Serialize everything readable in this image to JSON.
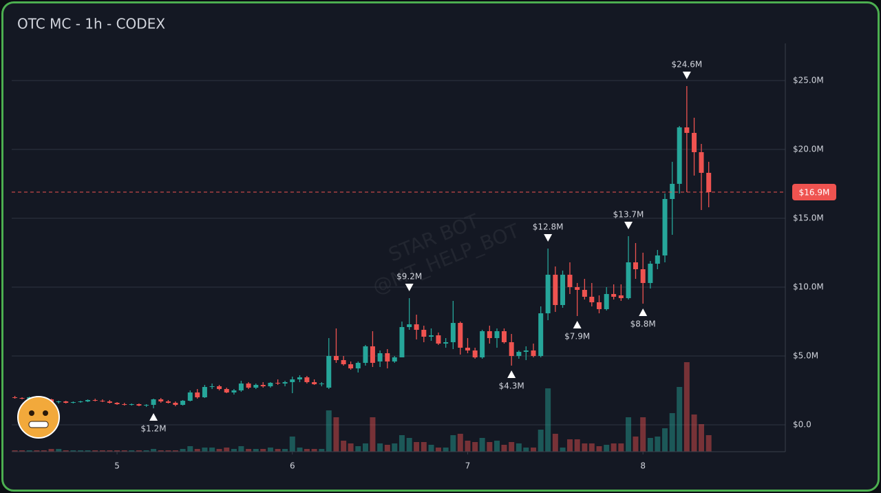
{
  "chart_data": {
    "type": "candlestick",
    "title": "OTC MC - 1h - CODEX",
    "watermark": [
      "STAR BOT",
      "@MT_HELP_BOT"
    ],
    "x": [
      4.417,
      4.458,
      4.5,
      4.542,
      4.583,
      4.625,
      4.667,
      4.708,
      4.75,
      4.792,
      4.833,
      4.875,
      4.917,
      4.958,
      5,
      5.042,
      5.083,
      5.125,
      5.167,
      5.208,
      5.25,
      5.292,
      5.333,
      5.375,
      5.417,
      5.458,
      5.5,
      5.542,
      5.583,
      5.625,
      5.667,
      5.708,
      5.75,
      5.792,
      5.833,
      5.875,
      5.917,
      5.958,
      6,
      6.042,
      6.083,
      6.125,
      6.167,
      6.208,
      6.25,
      6.292,
      6.333,
      6.375,
      6.417,
      6.458,
      6.5,
      6.542,
      6.583,
      6.625,
      6.667,
      6.708,
      6.75,
      6.792,
      6.833,
      6.875,
      6.917,
      6.958,
      7,
      7.042,
      7.083,
      7.125,
      7.167,
      7.208,
      7.25,
      7.292,
      7.333,
      7.375,
      7.417,
      7.458,
      7.5,
      7.542,
      7.583,
      7.625,
      7.667,
      7.708,
      7.75,
      7.792,
      7.833,
      7.875,
      7.917,
      7.958,
      8,
      8.042,
      8.083,
      8.125,
      8.167,
      8.208,
      8.25,
      8.292,
      8.333,
      8.375
    ],
    "open": [
      2.0,
      1.95,
      1.9,
      2.0,
      1.95,
      1.85,
      1.65,
      1.7,
      1.6,
      1.65,
      1.7,
      1.8,
      1.75,
      1.7,
      1.6,
      1.5,
      1.45,
      1.5,
      1.4,
      1.45,
      1.85,
      1.7,
      1.6,
      1.45,
      1.75,
      2.35,
      2.0,
      2.75,
      2.8,
      2.6,
      2.35,
      2.5,
      3.0,
      2.7,
      2.9,
      2.8,
      3.05,
      3.0,
      3.1,
      3.3,
      3.45,
      3.1,
      2.95,
      2.7,
      5.0,
      4.7,
      4.4,
      4.1,
      4.5,
      5.7,
      4.6,
      5.2,
      4.6,
      4.9,
      7.1,
      7.3,
      6.9,
      6.4,
      6.5,
      5.9,
      6.0,
      7.4,
      5.6,
      5.4,
      4.9,
      6.8,
      6.3,
      6.8,
      6.0,
      5.0,
      5.3,
      5.4,
      5.0,
      8.1,
      10.9,
      8.7,
      10.9,
      10.0,
      9.8,
      9.3,
      8.9,
      8.4,
      9.5,
      9.4,
      9.2,
      11.8,
      11.3,
      10.3,
      11.7,
      12.3,
      16.4,
      17.5,
      21.6,
      21.2,
      19.8,
      18.3
    ],
    "high": [
      2.1,
      2.0,
      2.05,
      2.1,
      2.05,
      1.9,
      1.75,
      1.75,
      1.7,
      1.75,
      1.85,
      1.9,
      1.85,
      1.8,
      1.65,
      1.6,
      1.55,
      1.55,
      1.5,
      1.9,
      1.95,
      1.8,
      1.7,
      1.8,
      2.5,
      2.6,
      2.9,
      3.0,
      2.9,
      2.7,
      2.6,
      3.2,
      3.1,
      3.0,
      3.1,
      3.1,
      3.3,
      3.2,
      3.5,
      3.6,
      3.55,
      3.3,
      3.1,
      6.3,
      7.0,
      5.0,
      4.6,
      4.6,
      5.8,
      6.8,
      5.4,
      5.5,
      5.0,
      7.5,
      9.2,
      8.0,
      7.2,
      7.0,
      6.7,
      6.3,
      9.0,
      7.5,
      6.3,
      5.6,
      6.9,
      7.2,
      7.0,
      7.0,
      6.6,
      5.4,
      5.7,
      5.9,
      8.6,
      12.8,
      11.5,
      11.2,
      11.8,
      10.3,
      10.6,
      10.3,
      9.4,
      10.0,
      10.2,
      10.2,
      13.7,
      13.2,
      12.5,
      11.9,
      12.7,
      16.8,
      19.1,
      21.7,
      24.6,
      22.3,
      20.4,
      19.1
    ],
    "low": [
      1.9,
      1.85,
      1.85,
      1.9,
      1.8,
      1.6,
      1.55,
      1.55,
      1.55,
      1.6,
      1.65,
      1.7,
      1.65,
      1.55,
      1.45,
      1.4,
      1.4,
      1.35,
      1.3,
      1.2,
      1.6,
      1.55,
      1.35,
      1.4,
      1.7,
      1.9,
      1.95,
      2.6,
      2.5,
      2.3,
      2.2,
      2.4,
      2.6,
      2.6,
      2.7,
      2.7,
      2.9,
      2.8,
      2.3,
      3.1,
      3.0,
      2.9,
      2.8,
      2.6,
      4.5,
      4.3,
      4.0,
      3.8,
      4.3,
      4.2,
      4.2,
      4.1,
      4.5,
      4.9,
      6.9,
      6.2,
      6.0,
      6.1,
      5.8,
      5.6,
      5.5,
      5.1,
      5.2,
      4.8,
      4.8,
      5.9,
      5.6,
      5.9,
      4.3,
      4.8,
      4.7,
      4.9,
      4.9,
      7.6,
      8.2,
      8.5,
      9.5,
      7.9,
      9.1,
      8.6,
      8.1,
      8.3,
      9.1,
      9.0,
      9.1,
      10.6,
      8.8,
      9.9,
      11.3,
      11.8,
      13.8,
      16.8,
      16.9,
      18.1,
      15.6,
      15.8
    ],
    "close": [
      1.95,
      1.9,
      2.0,
      1.95,
      1.85,
      1.65,
      1.7,
      1.6,
      1.65,
      1.7,
      1.8,
      1.75,
      1.7,
      1.6,
      1.5,
      1.45,
      1.5,
      1.4,
      1.45,
      1.85,
      1.7,
      1.6,
      1.45,
      1.75,
      2.35,
      2.0,
      2.75,
      2.8,
      2.6,
      2.35,
      2.5,
      3.0,
      2.7,
      2.9,
      2.8,
      3.05,
      3.0,
      3.1,
      3.3,
      3.45,
      3.1,
      2.95,
      3.0,
      5.0,
      4.7,
      4.4,
      4.1,
      4.5,
      5.7,
      4.5,
      5.2,
      4.6,
      4.9,
      7.1,
      7.3,
      6.9,
      6.4,
      6.5,
      5.9,
      6.0,
      7.4,
      5.6,
      5.4,
      4.9,
      6.8,
      6.3,
      6.8,
      6.0,
      5.0,
      5.3,
      5.4,
      5.0,
      8.1,
      10.9,
      8.7,
      10.9,
      10.0,
      9.8,
      9.3,
      8.9,
      8.4,
      9.5,
      9.3,
      9.2,
      11.8,
      11.3,
      10.3,
      11.7,
      12.3,
      16.4,
      17.5,
      21.6,
      21.2,
      19.8,
      18.3,
      16.9
    ],
    "volume": [
      1,
      1,
      1,
      1,
      1,
      2,
      2,
      1,
      1,
      1,
      1,
      1,
      1,
      1,
      1,
      1,
      1,
      1,
      1,
      2,
      1,
      1,
      1,
      2,
      4,
      2,
      3,
      3,
      2,
      3,
      2,
      4,
      2,
      2,
      2,
      3,
      2,
      2,
      11,
      3,
      2,
      2,
      2,
      30,
      25,
      8,
      6,
      4,
      6,
      25,
      6,
      5,
      6,
      12,
      10,
      7,
      7,
      5,
      3,
      3,
      12,
      13,
      8,
      7,
      10,
      7,
      8,
      5,
      7,
      6,
      3,
      3,
      16,
      46,
      13,
      3,
      9,
      9,
      6,
      6,
      4,
      5,
      6,
      6,
      25,
      11,
      25,
      10,
      11,
      17,
      28,
      47,
      65,
      27,
      20,
      12
    ],
    "up_color": "#26a69a",
    "down_color": "#ef5350",
    "xlim": [
      4.399,
      8.812
    ],
    "xticks": [
      5,
      6,
      7,
      8
    ],
    "ylim": [
      -1.95,
      27.7
    ],
    "yticks": [
      {
        "value": 0,
        "label": "$0.0"
      },
      {
        "value": 5,
        "label": "$5.0M"
      },
      {
        "value": 10,
        "label": "$10.0M"
      },
      {
        "value": 15,
        "label": "$15.0M"
      },
      {
        "value": 20,
        "label": "$20.0M"
      },
      {
        "value": 25,
        "label": "$25.0M"
      }
    ],
    "grid": true,
    "last_price": {
      "value": 16.9,
      "label": "$16.9M"
    },
    "annotations": [
      {
        "x": 5.208,
        "value": 1.2,
        "label": "$1.2M"
      },
      {
        "x": 6.667,
        "value": 9.2,
        "label": "$9.2M"
      },
      {
        "x": 7.25,
        "value": 4.3,
        "label": "$4.3M"
      },
      {
        "x": 7.458,
        "value": 12.8,
        "label": "$12.8M"
      },
      {
        "x": 7.625,
        "value": 7.9,
        "label": "$7.9M"
      },
      {
        "x": 7.917,
        "value": 13.7,
        "label": "$13.7M"
      },
      {
        "x": 8,
        "value": 8.8,
        "label": "$8.8M"
      },
      {
        "x": 8.25,
        "value": 24.6,
        "label": "$24.6M"
      }
    ]
  }
}
